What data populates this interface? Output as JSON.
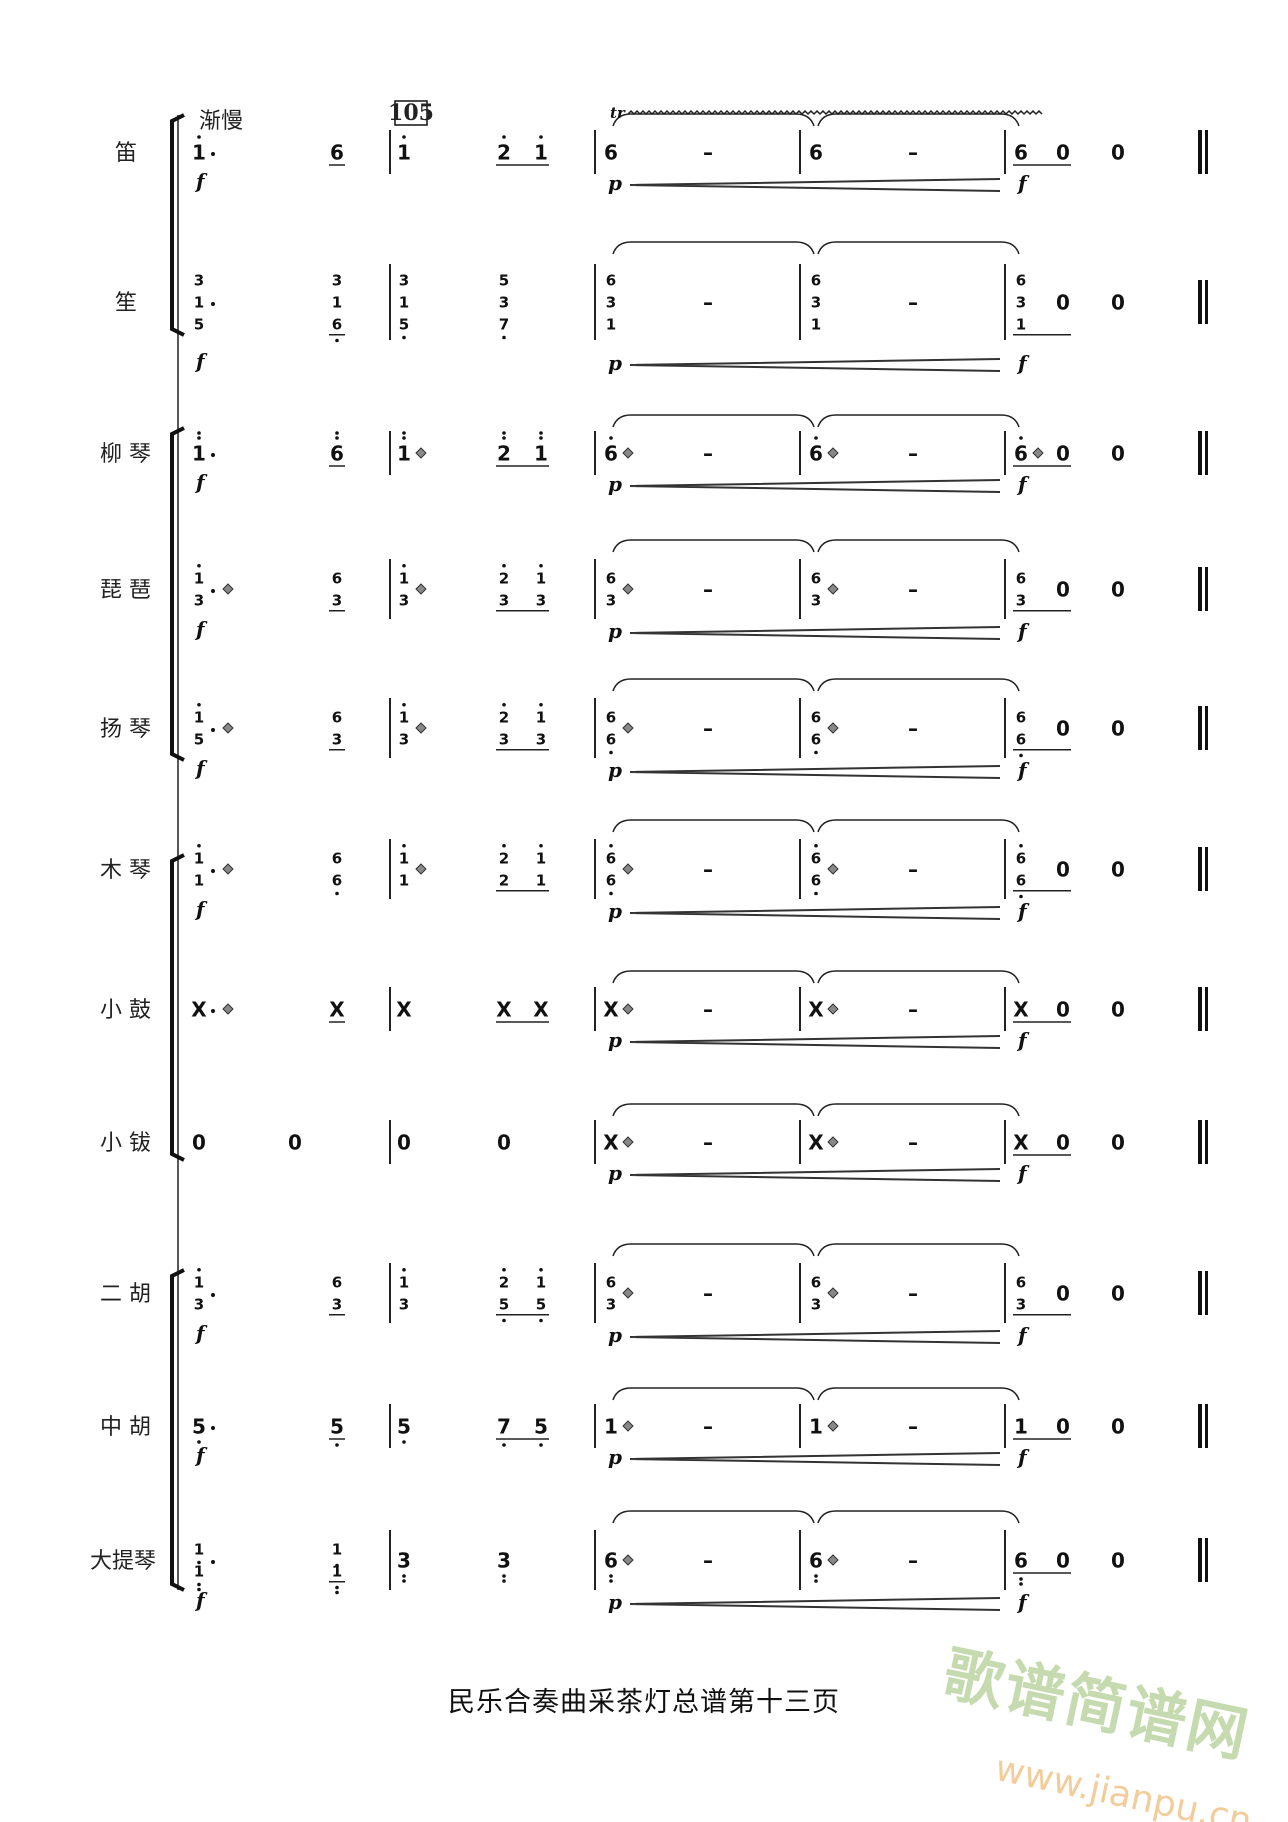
{
  "tempo_marking": "渐慢",
  "rehearsal_mark": "105",
  "trill_label": "tr",
  "footer": "民乐合奏曲采茶灯总谱第十三页",
  "watermark": {
    "cn": "歌谱简谱网",
    "url": "www.jianpu.cn"
  },
  "rows": [
    {
      "label": "笛",
      "dyn": [
        "a:f",
        "e:p",
        "g:f"
      ],
      "trill": true,
      "tokens": [
        {
          "c": "a",
          "n": [
            "1^"
          ],
          "aug": 1
        },
        {
          "c": "b",
          "n": [
            "6"
          ],
          "ul": 1
        },
        {
          "c": "c",
          "n": [
            "1^"
          ]
        },
        {
          "c": "d1",
          "n": [
            "2^"
          ],
          "ul": 1
        },
        {
          "c": "d2",
          "n": [
            "1^"
          ],
          "ul": 1
        },
        {
          "c": "e",
          "n": [
            "6"
          ]
        },
        {
          "c": "de",
          "n": [
            "–"
          ]
        },
        {
          "c": "f",
          "n": [
            "6"
          ]
        },
        {
          "c": "df",
          "n": [
            "–"
          ]
        },
        {
          "c": "g",
          "n": [
            "6"
          ],
          "ul": 1
        },
        {
          "c": "g2",
          "n": [
            "0"
          ],
          "ul": 1
        },
        {
          "c": "h",
          "n": [
            "0"
          ]
        }
      ]
    },
    {
      "label": "笙",
      "dyn": [
        "a:f",
        "e:p",
        "g:f"
      ],
      "tokens": [
        {
          "c": "a",
          "n": [
            "3",
            "1",
            "5"
          ],
          "aug": 1
        },
        {
          "c": "b",
          "n": [
            "3",
            "1",
            "6_"
          ],
          "ul": 1
        },
        {
          "c": "c",
          "n": [
            "3",
            "1",
            "5_"
          ]
        },
        {
          "c": "d1",
          "n": [
            "5",
            "3",
            "7_"
          ]
        },
        {
          "c": "e",
          "n": [
            "6",
            "3",
            "1"
          ]
        },
        {
          "c": "de",
          "n": [
            "–"
          ]
        },
        {
          "c": "f",
          "n": [
            "6",
            "3",
            "1"
          ]
        },
        {
          "c": "df",
          "n": [
            "–"
          ]
        },
        {
          "c": "g",
          "n": [
            "6",
            "3",
            "1"
          ],
          "ul": 1
        },
        {
          "c": "g2",
          "n": [
            "0"
          ],
          "ul": 1
        },
        {
          "c": "h",
          "n": [
            "0"
          ]
        }
      ]
    },
    {
      "label": "柳 琴",
      "dyn": [
        "a:f",
        "e:p",
        "g:f"
      ],
      "tokens": [
        {
          "c": "a",
          "n": [
            "1^^"
          ],
          "aug": 1
        },
        {
          "c": "b",
          "n": [
            "6^^"
          ],
          "ul": 1
        },
        {
          "c": "c",
          "n": [
            "1^^"
          ],
          "tr": 1
        },
        {
          "c": "d1",
          "n": [
            "2^^"
          ],
          "ul": 1
        },
        {
          "c": "d2",
          "n": [
            "1^^"
          ],
          "ul": 1
        },
        {
          "c": "e",
          "n": [
            "6^"
          ],
          "tr": 1
        },
        {
          "c": "de",
          "n": [
            "–"
          ]
        },
        {
          "c": "f",
          "n": [
            "6^"
          ],
          "tr": 1
        },
        {
          "c": "df",
          "n": [
            "–"
          ]
        },
        {
          "c": "g",
          "n": [
            "6^"
          ],
          "tr": 1,
          "ul": 1
        },
        {
          "c": "g2",
          "n": [
            "0"
          ],
          "ul": 1
        },
        {
          "c": "h",
          "n": [
            "0"
          ]
        }
      ]
    },
    {
      "label": "琵 琶",
      "dyn": [
        "a:f",
        "e:p",
        "g:f"
      ],
      "tokens": [
        {
          "c": "a",
          "n": [
            "1^",
            "3"
          ],
          "aug": 1,
          "tr": 1
        },
        {
          "c": "b",
          "n": [
            "6",
            "3"
          ],
          "ul": 1
        },
        {
          "c": "c",
          "n": [
            "1^",
            "3"
          ],
          "tr": 1
        },
        {
          "c": "d1",
          "n": [
            "2^",
            "3"
          ],
          "ul": 1
        },
        {
          "c": "d2",
          "n": [
            "1^",
            "3"
          ],
          "ul": 1
        },
        {
          "c": "e",
          "n": [
            "6",
            "3"
          ],
          "tr": 1
        },
        {
          "c": "de",
          "n": [
            "–"
          ]
        },
        {
          "c": "f",
          "n": [
            "6",
            "3"
          ],
          "tr": 1
        },
        {
          "c": "df",
          "n": [
            "–"
          ]
        },
        {
          "c": "g",
          "n": [
            "6",
            "3"
          ],
          "ul": 1
        },
        {
          "c": "g2",
          "n": [
            "0"
          ],
          "ul": 1
        },
        {
          "c": "h",
          "n": [
            "0"
          ]
        }
      ]
    },
    {
      "label": "扬 琴",
      "dyn": [
        "a:f",
        "e:p",
        "g:f"
      ],
      "tokens": [
        {
          "c": "a",
          "n": [
            "1^",
            "5"
          ],
          "aug": 1,
          "tr": 1
        },
        {
          "c": "b",
          "n": [
            "6",
            "3"
          ],
          "ul": 1
        },
        {
          "c": "c",
          "n": [
            "1^",
            "3"
          ],
          "tr": 1
        },
        {
          "c": "d1",
          "n": [
            "2^",
            "3"
          ],
          "ul": 1
        },
        {
          "c": "d2",
          "n": [
            "1^",
            "3"
          ],
          "ul": 1
        },
        {
          "c": "e",
          "n": [
            "6",
            "6_"
          ],
          "tr": 1
        },
        {
          "c": "de",
          "n": [
            "–"
          ]
        },
        {
          "c": "f",
          "n": [
            "6",
            "6_"
          ],
          "tr": 1
        },
        {
          "c": "df",
          "n": [
            "–"
          ]
        },
        {
          "c": "g",
          "n": [
            "6",
            "6_"
          ],
          "ul": 1
        },
        {
          "c": "g2",
          "n": [
            "0"
          ],
          "ul": 1
        },
        {
          "c": "h",
          "n": [
            "0"
          ]
        }
      ]
    },
    {
      "label": "木 琴",
      "dyn": [
        "a:f",
        "e:p",
        "g:f"
      ],
      "tokens": [
        {
          "c": "a",
          "n": [
            "1^",
            "1"
          ],
          "aug": 1,
          "tr": 1
        },
        {
          "c": "b",
          "n": [
            "6",
            "6_"
          ]
        },
        {
          "c": "c",
          "n": [
            "1^",
            "1"
          ],
          "tr": 1
        },
        {
          "c": "d1",
          "n": [
            "2^",
            "2"
          ],
          "ul": 1
        },
        {
          "c": "d2",
          "n": [
            "1^",
            "1"
          ],
          "ul": 1
        },
        {
          "c": "e",
          "n": [
            "6^",
            "6_"
          ],
          "tr": 1
        },
        {
          "c": "de",
          "n": [
            "–"
          ]
        },
        {
          "c": "f",
          "n": [
            "6^",
            "6_"
          ],
          "tr": 1
        },
        {
          "c": "df",
          "n": [
            "–"
          ]
        },
        {
          "c": "g",
          "n": [
            "6^",
            "6_"
          ],
          "ul": 1
        },
        {
          "c": "g2",
          "n": [
            "0"
          ],
          "ul": 1
        },
        {
          "c": "h",
          "n": [
            "0"
          ]
        }
      ]
    },
    {
      "label": "小 鼓",
      "dyn": [
        "e:p",
        "g:f"
      ],
      "tokens": [
        {
          "c": "a",
          "n": [
            "X"
          ],
          "aug": 1,
          "tr": 1
        },
        {
          "c": "b",
          "n": [
            "X"
          ],
          "ul": 1
        },
        {
          "c": "c",
          "n": [
            "X"
          ]
        },
        {
          "c": "d1",
          "n": [
            "X"
          ],
          "ul": 1
        },
        {
          "c": "d2",
          "n": [
            "X"
          ],
          "ul": 1
        },
        {
          "c": "e",
          "n": [
            "X"
          ],
          "tr": 1
        },
        {
          "c": "de",
          "n": [
            "–"
          ]
        },
        {
          "c": "f",
          "n": [
            "X"
          ],
          "tr": 1
        },
        {
          "c": "df",
          "n": [
            "–"
          ]
        },
        {
          "c": "g",
          "n": [
            "X"
          ],
          "ul": 1
        },
        {
          "c": "g2",
          "n": [
            "0"
          ],
          "ul": 1
        },
        {
          "c": "h",
          "n": [
            "0"
          ]
        }
      ]
    },
    {
      "label": "小 钹",
      "dyn": [
        "e:p",
        "g:f"
      ],
      "tokens": [
        {
          "c": "a",
          "n": [
            "0"
          ]
        },
        {
          "c": "a2",
          "n": [
            "0"
          ]
        },
        {
          "c": "c",
          "n": [
            "0"
          ]
        },
        {
          "c": "d1",
          "n": [
            "0"
          ]
        },
        {
          "c": "e",
          "n": [
            "X"
          ],
          "tr": 1
        },
        {
          "c": "de",
          "n": [
            "–"
          ]
        },
        {
          "c": "f",
          "n": [
            "X"
          ],
          "tr": 1
        },
        {
          "c": "df",
          "n": [
            "–"
          ]
        },
        {
          "c": "g",
          "n": [
            "X"
          ],
          "ul": 1
        },
        {
          "c": "g2",
          "n": [
            "0"
          ],
          "ul": 1
        },
        {
          "c": "h",
          "n": [
            "0"
          ]
        }
      ]
    },
    {
      "label": "二 胡",
      "dyn": [
        "a:f",
        "e:p",
        "g:f"
      ],
      "tokens": [
        {
          "c": "a",
          "n": [
            "1^",
            "3"
          ],
          "aug": 1
        },
        {
          "c": "b",
          "n": [
            "6",
            "3"
          ],
          "ul": 1
        },
        {
          "c": "c",
          "n": [
            "1^",
            "3"
          ]
        },
        {
          "c": "d1",
          "n": [
            "2^",
            "5_"
          ],
          "ul": 1
        },
        {
          "c": "d2",
          "n": [
            "1^",
            "5_"
          ],
          "ul": 1
        },
        {
          "c": "e",
          "n": [
            "6",
            "3"
          ],
          "tr": 1
        },
        {
          "c": "de",
          "n": [
            "–"
          ]
        },
        {
          "c": "f",
          "n": [
            "6",
            "3"
          ],
          "tr": 1
        },
        {
          "c": "df",
          "n": [
            "–"
          ]
        },
        {
          "c": "g",
          "n": [
            "6",
            "3"
          ],
          "ul": 1
        },
        {
          "c": "g2",
          "n": [
            "0"
          ],
          "ul": 1
        },
        {
          "c": "h",
          "n": [
            "0"
          ]
        }
      ]
    },
    {
      "label": "中 胡",
      "dyn": [
        "a:f",
        "e:p",
        "g:f"
      ],
      "tokens": [
        {
          "c": "a",
          "n": [
            "5_"
          ],
          "aug": 1
        },
        {
          "c": "b",
          "n": [
            "5_"
          ],
          "ul": 1
        },
        {
          "c": "c",
          "n": [
            "5_"
          ]
        },
        {
          "c": "d1",
          "n": [
            "7_"
          ],
          "ul": 1
        },
        {
          "c": "d2",
          "n": [
            "5_"
          ],
          "ul": 1
        },
        {
          "c": "e",
          "n": [
            "1"
          ],
          "tr": 1
        },
        {
          "c": "de",
          "n": [
            "–"
          ]
        },
        {
          "c": "f",
          "n": [
            "1"
          ],
          "tr": 1
        },
        {
          "c": "df",
          "n": [
            "–"
          ]
        },
        {
          "c": "g",
          "n": [
            "1"
          ],
          "ul": 1
        },
        {
          "c": "g2",
          "n": [
            "0"
          ],
          "ul": 1
        },
        {
          "c": "h",
          "n": [
            "0"
          ]
        }
      ]
    },
    {
      "label": "大提琴",
      "dyn": [
        "a:f",
        "e:p",
        "g:f"
      ],
      "tokens": [
        {
          "c": "a",
          "n": [
            "1_",
            "1__"
          ],
          "aug": 1
        },
        {
          "c": "b",
          "n": [
            "1_",
            "1__"
          ],
          "ul": 1
        },
        {
          "c": "c",
          "n": [
            "3__"
          ]
        },
        {
          "c": "d1",
          "n": [
            "3__"
          ]
        },
        {
          "c": "e",
          "n": [
            "6__"
          ],
          "tr": 1
        },
        {
          "c": "de",
          "n": [
            "–"
          ]
        },
        {
          "c": "f",
          "n": [
            "6__"
          ],
          "tr": 1
        },
        {
          "c": "df",
          "n": [
            "–"
          ]
        },
        {
          "c": "g",
          "n": [
            "6__"
          ],
          "ul": 1
        },
        {
          "c": "g2",
          "n": [
            "0"
          ],
          "ul": 1
        },
        {
          "c": "h",
          "n": [
            "0"
          ]
        }
      ]
    }
  ]
}
